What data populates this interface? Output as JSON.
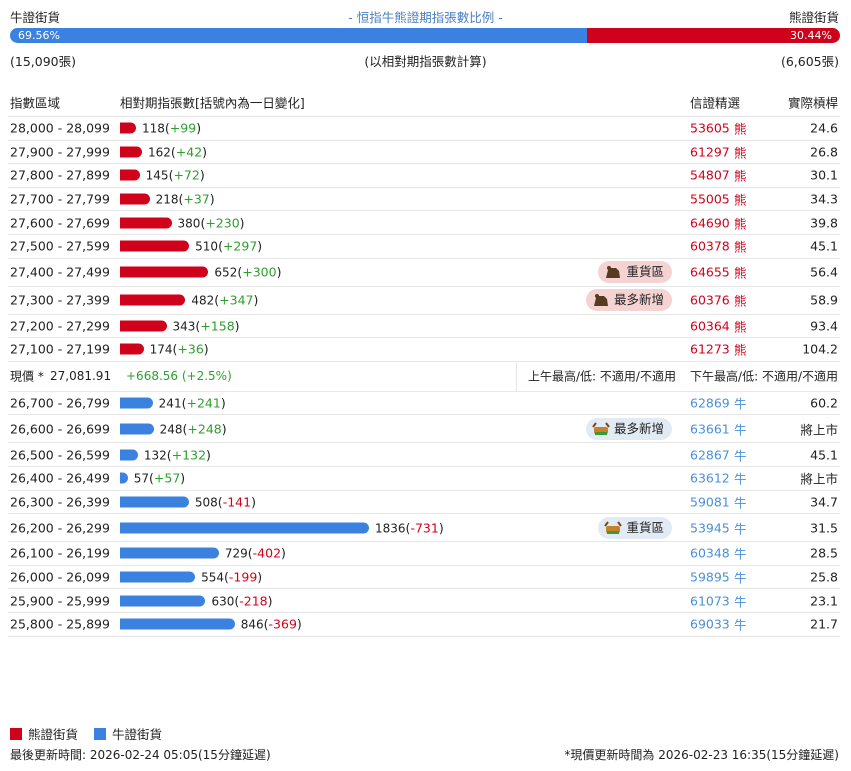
{
  "header": {
    "left": "牛證街貨",
    "title": "- 恒指牛熊證期指張數比例 -",
    "right": "熊證街貨"
  },
  "ratio": {
    "bull": {
      "value": 69.56,
      "label": "69.56%"
    },
    "bear": {
      "value": 30.44,
      "label": "30.44%"
    }
  },
  "counts": {
    "bull": "(15,090張)",
    "note": "(以相對期指張數計算)",
    "bear": "(6,605張)"
  },
  "columns": [
    "指數區域",
    "相對期指張數[括號內為一日變化]",
    "信證精選",
    "實際槓桿"
  ],
  "bear_rows": [
    {
      "range": "28,000 - 28,099",
      "count": 118,
      "change": "+99",
      "code": "53605",
      "kind": "熊",
      "leverage": 24.6
    },
    {
      "range": "27,900 - 27,999",
      "count": 162,
      "change": "+42",
      "code": "61297",
      "kind": "熊",
      "leverage": 26.8
    },
    {
      "range": "27,800 - 27,899",
      "count": 145,
      "change": "+72",
      "code": "54807",
      "kind": "熊",
      "leverage": 30.1
    },
    {
      "range": "27,700 - 27,799",
      "count": 218,
      "change": "+37",
      "code": "55005",
      "kind": "熊",
      "leverage": 34.3
    },
    {
      "range": "27,600 - 27,699",
      "count": 380,
      "change": "+230",
      "code": "64690",
      "kind": "熊",
      "leverage": 39.8
    },
    {
      "range": "27,500 - 27,599",
      "count": 510,
      "change": "+297",
      "code": "60378",
      "kind": "熊",
      "leverage": 45.1
    },
    {
      "range": "27,400 - 27,499",
      "count": 652,
      "change": "+300",
      "tag": "重貨區",
      "code": "64655",
      "kind": "熊",
      "leverage": 56.4
    },
    {
      "range": "27,300 - 27,399",
      "count": 482,
      "change": "+347",
      "tag": "最多新增",
      "code": "60376",
      "kind": "熊",
      "leverage": 58.9
    },
    {
      "range": "27,200 - 27,299",
      "count": 343,
      "change": "+158",
      "code": "60364",
      "kind": "熊",
      "leverage": 93.4
    },
    {
      "range": "27,100 - 27,199",
      "count": 174,
      "change": "+36",
      "code": "61273",
      "kind": "熊",
      "leverage": 104.2
    }
  ],
  "price": {
    "label": "現價 *",
    "value": "27,081.91",
    "change": "+668.56 (+2.5%)",
    "am": "上午最高/低: 不適用/不適用",
    "pm": "下午最高/低: 不適用/不適用"
  },
  "bull_rows": [
    {
      "range": "26,700 - 26,799",
      "count": 241,
      "change": "+241",
      "code": "62869",
      "kind": "牛",
      "leverage": 60.2
    },
    {
      "range": "26,600 - 26,699",
      "count": 248,
      "change": "+248",
      "tag": "最多新增",
      "code": "63661",
      "kind": "牛",
      "leverage": "將上市"
    },
    {
      "range": "26,500 - 26,599",
      "count": 132,
      "change": "+132",
      "code": "62867",
      "kind": "牛",
      "leverage": 45.1
    },
    {
      "range": "26,400 - 26,499",
      "count": 57,
      "change": "+57",
      "code": "63612",
      "kind": "牛",
      "leverage": "將上市"
    },
    {
      "range": "26,300 - 26,399",
      "count": 508,
      "change": "-141",
      "code": "59081",
      "kind": "牛",
      "leverage": 34.7
    },
    {
      "range": "26,200 - 26,299",
      "count": 1836,
      "change": "-731",
      "tag": "重貨區",
      "code": "53945",
      "kind": "牛",
      "leverage": 31.5
    },
    {
      "range": "26,100 - 26,199",
      "count": 729,
      "change": "-402",
      "code": "60348",
      "kind": "牛",
      "leverage": 28.5
    },
    {
      "range": "26,000 - 26,099",
      "count": 554,
      "change": "-199",
      "code": "59895",
      "kind": "牛",
      "leverage": 25.8
    },
    {
      "range": "25,900 - 25,999",
      "count": 630,
      "change": "-218",
      "code": "61073",
      "kind": "牛",
      "leverage": 23.1
    },
    {
      "range": "25,800 - 25,899",
      "count": 846,
      "change": "-369",
      "code": "69033",
      "kind": "牛",
      "leverage": 21.7
    }
  ],
  "legend": {
    "bear": "熊證街貨",
    "bull": "牛證街貨"
  },
  "footer": {
    "left": "最後更新時間: 2026-02-24 05:05(15分鐘延遲)",
    "right": "*現價更新時間為 2026-02-23 16:35(15分鐘延遲)"
  }
}
